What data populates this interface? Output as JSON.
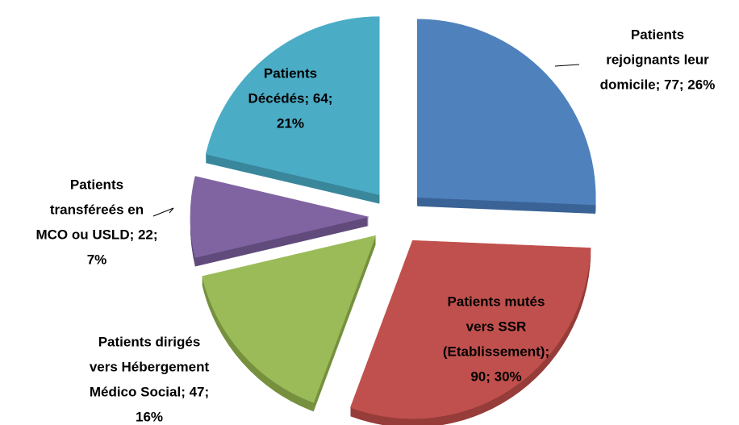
{
  "chart_data": {
    "type": "pie",
    "categories": [
      "Patients rejoignants leur domicile",
      "Patients mutés vers SSR (Etablissement)",
      "Patients dirigés vers Hébergement Médico Social",
      "Patients transféreés en MCO ou USLD",
      "Patients Décédés"
    ],
    "values": [
      77,
      90,
      47,
      22,
      64
    ],
    "labels": [
      [
        "Patients",
        "rejoignants leur",
        "domicile; 77; 26%"
      ],
      [
        "Patients mutés",
        "vers SSR",
        "(Etablissement);",
        "90; 30%"
      ],
      [
        "Patients dirigés",
        "vers Hébergement",
        "Médico Social; 47;",
        "16%"
      ],
      [
        "Patients",
        "transféreés en",
        "MCO ou USLD; 22;",
        "7%"
      ],
      [
        "Patients",
        "Décédés; 64;",
        "21%"
      ]
    ],
    "colors": [
      "#4f81bd",
      "#c0504d",
      "#9bbb59",
      "#8064a2",
      "#4bacc6"
    ],
    "depth_colors": [
      "#3a6396",
      "#963d3a",
      "#76903f",
      "#614b7c",
      "#3a879c"
    ]
  }
}
